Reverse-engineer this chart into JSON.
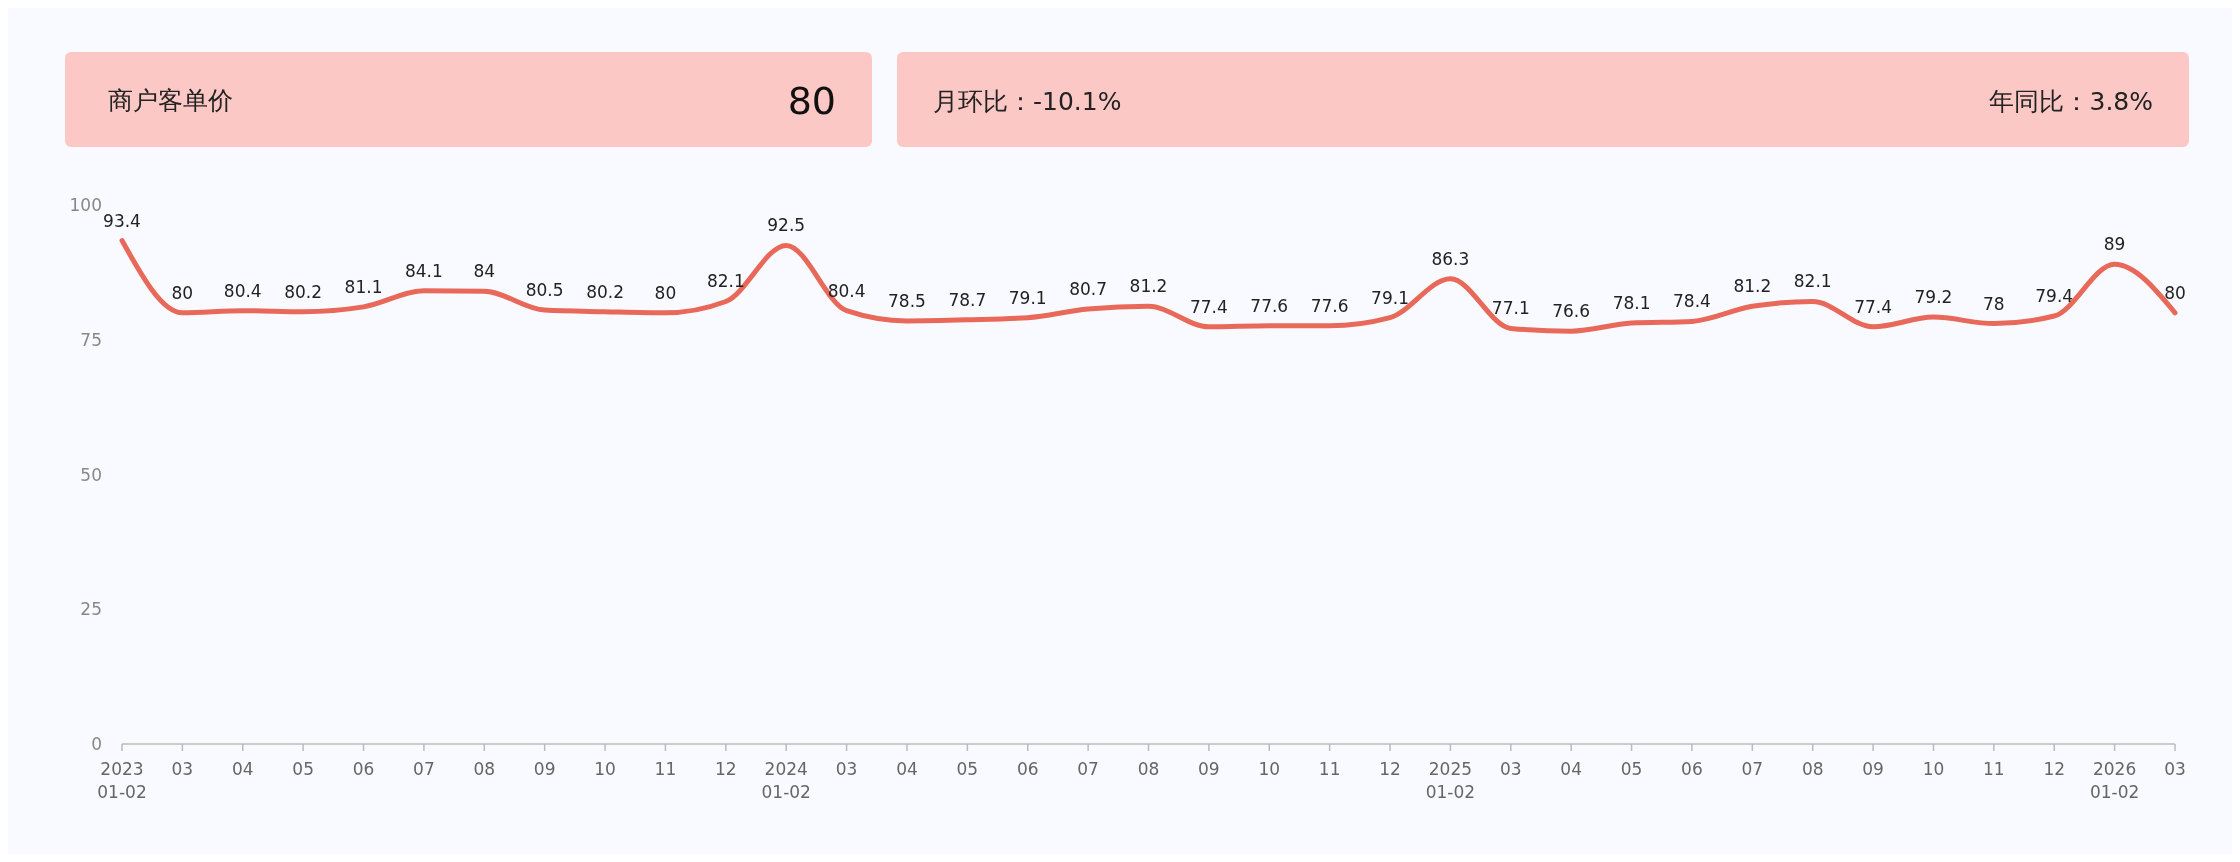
{
  "chart_data": {
    "type": "line",
    "title": "商户客单价",
    "annotations": [
      "80",
      "月环比：-10.1%",
      "年同比：3.8%"
    ],
    "categories": [
      "2023\n01-02",
      "03",
      "04",
      "05",
      "06",
      "07",
      "08",
      "09",
      "10",
      "11",
      "12",
      "2024\n01-02",
      "03",
      "04",
      "05",
      "06",
      "07",
      "08",
      "09",
      "10",
      "11",
      "12",
      "2025\n01-02",
      "03",
      "04",
      "05",
      "06",
      "07",
      "08",
      "09",
      "10",
      "11",
      "12",
      "2026\n01-02",
      "03"
    ],
    "series": [
      {
        "color": "#e8695a",
        "values": [
          93.4,
          80,
          80.4,
          80.2,
          81.1,
          84.1,
          84,
          80.5,
          80.2,
          80,
          82.1,
          92.5,
          80.4,
          78.5,
          78.7,
          79.1,
          80.7,
          81.2,
          77.4,
          77.6,
          77.6,
          79.1,
          86.3,
          77.1,
          76.6,
          78.1,
          78.4,
          81.2,
          82.1,
          77.4,
          79.2,
          78,
          79.4,
          89,
          80
        ]
      }
    ],
    "ylim": [
      0,
      100
    ],
    "yticks": [
      0,
      25,
      50,
      75,
      100
    ],
    "grid": false,
    "data_labels": true
  }
}
